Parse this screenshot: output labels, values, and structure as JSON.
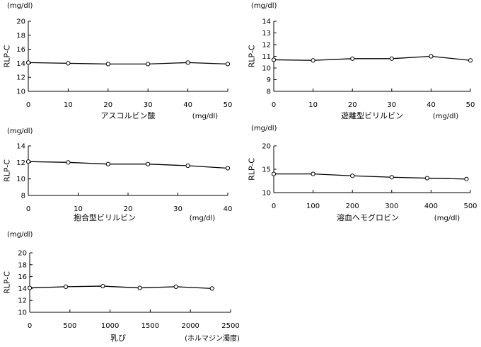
{
  "chart_data": [
    {
      "type": "line",
      "unit_y": "(mg/dl)",
      "ylabel": "RLP-C",
      "xlabel": "アスコルビン酸",
      "unit_x": "(mg/dl)",
      "x": [
        0,
        10,
        20,
        30,
        40,
        50
      ],
      "series": [
        {
          "values": [
            14.1,
            14.0,
            13.9,
            13.9,
            14.1,
            13.9
          ]
        }
      ],
      "xlim": [
        0,
        50
      ],
      "ylim": [
        10,
        20
      ],
      "xticks": [
        0,
        10,
        20,
        30,
        40,
        50
      ],
      "yticks": [
        10,
        12,
        14,
        16,
        18,
        20
      ],
      "line_color": "#000000",
      "grid": false
    },
    {
      "type": "line",
      "unit_y": "(mg/dl)",
      "ylabel": "RLP-C",
      "xlabel": "遊離型ビリルビン",
      "unit_x": "(mg/dl)",
      "x": [
        0,
        10,
        20,
        30,
        40,
        50
      ],
      "series": [
        {
          "values": [
            10.7,
            10.65,
            10.8,
            10.8,
            11.0,
            10.65
          ]
        }
      ],
      "xlim": [
        0,
        50
      ],
      "ylim": [
        8,
        14
      ],
      "xticks": [
        0,
        10,
        20,
        30,
        40,
        50
      ],
      "yticks": [
        8,
        9,
        10,
        11,
        12,
        13,
        14
      ],
      "line_color": "#000000",
      "grid": false
    },
    {
      "type": "line",
      "unit_y": "(mg/dl)",
      "ylabel": "RLP-C",
      "xlabel": "抱合型ビリルビン",
      "unit_x": "(mg/dl)",
      "x": [
        0,
        8,
        16,
        24,
        32,
        40
      ],
      "series": [
        {
          "values": [
            12.1,
            12.0,
            11.8,
            11.8,
            11.6,
            11.3
          ]
        }
      ],
      "xlim": [
        0,
        40
      ],
      "ylim": [
        8,
        14
      ],
      "xticks": [
        0,
        10,
        20,
        30,
        40
      ],
      "yticks": [
        8,
        10,
        12,
        14
      ],
      "line_color": "#000000",
      "grid": false
    },
    {
      "type": "line",
      "unit_y": "(mg/dl)",
      "ylabel": "RLP-C",
      "xlabel": "溶血ヘモグロビン",
      "unit_x": "(mg/dl)",
      "x": [
        0,
        100,
        200,
        300,
        390,
        490
      ],
      "series": [
        {
          "values": [
            14.0,
            14.0,
            13.6,
            13.3,
            13.1,
            12.9
          ]
        }
      ],
      "xlim": [
        0,
        500
      ],
      "ylim": [
        10,
        20
      ],
      "xticks": [
        0,
        100,
        200,
        300,
        400,
        500
      ],
      "yticks": [
        10,
        15,
        20
      ],
      "line_color": "#000000",
      "grid": false
    },
    {
      "type": "line",
      "unit_y": "(mg/dl)",
      "ylabel": "RLP-C",
      "xlabel": "乳び",
      "unit_x": "(ホルマジン濁度)",
      "x": [
        0,
        450,
        910,
        1370,
        1820,
        2270
      ],
      "series": [
        {
          "values": [
            14.1,
            14.3,
            14.4,
            14.1,
            14.3,
            14.0
          ]
        }
      ],
      "xlim": [
        0,
        2500
      ],
      "ylim": [
        10,
        20
      ],
      "xticks": [
        0,
        500,
        1000,
        1500,
        2000,
        2500
      ],
      "yticks": [
        10,
        12,
        14,
        16,
        18,
        20
      ],
      "line_color": "#000000",
      "grid": false
    }
  ]
}
